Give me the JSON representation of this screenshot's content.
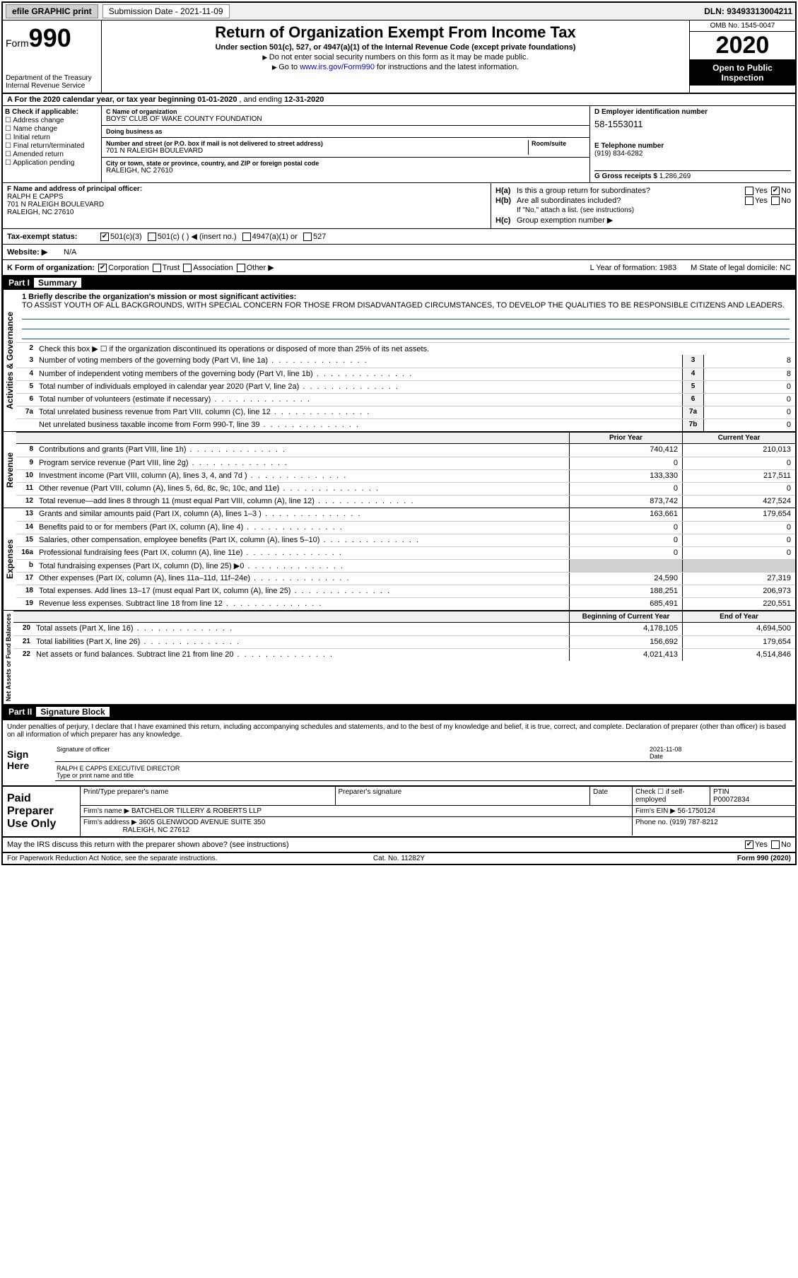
{
  "topbar": {
    "efile": "efile GRAPHIC print",
    "submission_label": "Submission Date - 2021-11-09",
    "dln": "DLN: 93493313004211"
  },
  "header": {
    "form_word": "Form",
    "form_num": "990",
    "dept": "Department of the Treasury\nInternal Revenue Service",
    "title": "Return of Organization Exempt From Income Tax",
    "sub1": "Under section 501(c), 527, or 4947(a)(1) of the Internal Revenue Code (except private foundations)",
    "sub2": "Do not enter social security numbers on this form as it may be made public.",
    "sub3_pre": "Go to ",
    "sub3_link": "www.irs.gov/Form990",
    "sub3_post": " for instructions and the latest information.",
    "omb": "OMB No. 1545-0047",
    "year": "2020",
    "open": "Open to Public Inspection"
  },
  "period": {
    "a": "A For the 2020 calendar year, or tax year beginning ",
    "begin": "01-01-2020",
    "mid": " , and ending ",
    "end": "12-31-2020"
  },
  "B": {
    "label": "B Check if applicable:",
    "opts": [
      "Address change",
      "Name change",
      "Initial return",
      "Final return/terminated",
      "Amended return",
      "Application pending"
    ]
  },
  "C": {
    "name_lbl": "C Name of organization",
    "name": "BOYS' CLUB OF WAKE COUNTY FOUNDATION",
    "dba_lbl": "Doing business as",
    "dba": "",
    "street_lbl": "Number and street (or P.O. box if mail is not delivered to street address)",
    "street": "701 N RALEIGH BOULEVARD",
    "room_lbl": "Room/suite",
    "room": "",
    "city_lbl": "City or town, state or province, country, and ZIP or foreign postal code",
    "city": "RALEIGH, NC  27610"
  },
  "D": {
    "ein_lbl": "D Employer identification number",
    "ein": "58-1553011",
    "phone_lbl": "E Telephone number",
    "phone": "(919) 834-6282",
    "gross_lbl": "G Gross receipts $ ",
    "gross": "1,286,269"
  },
  "F": {
    "lbl": "F  Name and address of principal officer:",
    "name": "RALPH E CAPPS",
    "addr1": "701 N RALEIGH BOULEVARD",
    "addr2": "RALEIGH, NC  27610"
  },
  "H": {
    "a": "Is this a group return for subordinates?",
    "b": "Are all subordinates included?",
    "bnote": "If \"No,\" attach a list. (see instructions)",
    "c": "Group exemption number ▶",
    "yes": "Yes",
    "no": "No"
  },
  "I": {
    "lbl": "Tax-exempt status:",
    "o1": "501(c)(3)",
    "o2": "501(c) (   ) ◀ (insert no.)",
    "o3": "4947(a)(1) or",
    "o4": "527"
  },
  "J": {
    "lbl": "Website: ▶",
    "val": "N/A"
  },
  "K": {
    "lbl": "K Form of organization:",
    "o1": "Corporation",
    "o2": "Trust",
    "o3": "Association",
    "o4": "Other ▶",
    "L": "L Year of formation: 1983",
    "M": "M State of legal domicile: NC"
  },
  "part1": {
    "hdr": "Part I",
    "title": "Summary"
  },
  "mission": {
    "lbl": "1  Briefly describe the organization's mission or most significant activities:",
    "text": "TO ASSIST YOUTH OF ALL BACKGROUNDS, WITH SPECIAL CONCERN FOR THOSE FROM DISADVANTAGED CIRCUMSTANCES, TO DEVELOP THE QUALITIES TO BE RESPONSIBLE CITIZENS AND LEADERS."
  },
  "activities": {
    "vlabel": "Activities & Governance",
    "l2": "Check this box ▶ ☐ if the organization discontinued its operations or disposed of more than 25% of its net assets.",
    "rows": [
      {
        "n": "3",
        "t": "Number of voting members of the governing body (Part VI, line 1a)",
        "b": "3",
        "v": "8"
      },
      {
        "n": "4",
        "t": "Number of independent voting members of the governing body (Part VI, line 1b)",
        "b": "4",
        "v": "8"
      },
      {
        "n": "5",
        "t": "Total number of individuals employed in calendar year 2020 (Part V, line 2a)",
        "b": "5",
        "v": "0"
      },
      {
        "n": "6",
        "t": "Total number of volunteers (estimate if necessary)",
        "b": "6",
        "v": "0"
      },
      {
        "n": "7a",
        "t": "Total unrelated business revenue from Part VIII, column (C), line 12",
        "b": "7a",
        "v": "0"
      },
      {
        "n": "",
        "t": "Net unrelated business taxable income from Form 990-T, line 39",
        "b": "7b",
        "v": "0"
      }
    ]
  },
  "revenue": {
    "vlabel": "Revenue",
    "hdr_prior": "Prior Year",
    "hdr_curr": "Current Year",
    "rows": [
      {
        "n": "8",
        "t": "Contributions and grants (Part VIII, line 1h)",
        "p": "740,412",
        "c": "210,013"
      },
      {
        "n": "9",
        "t": "Program service revenue (Part VIII, line 2g)",
        "p": "0",
        "c": "0"
      },
      {
        "n": "10",
        "t": "Investment income (Part VIII, column (A), lines 3, 4, and 7d )",
        "p": "133,330",
        "c": "217,511"
      },
      {
        "n": "11",
        "t": "Other revenue (Part VIII, column (A), lines 5, 6d, 8c, 9c, 10c, and 11e)",
        "p": "0",
        "c": "0"
      },
      {
        "n": "12",
        "t": "Total revenue—add lines 8 through 11 (must equal Part VIII, column (A), line 12)",
        "p": "873,742",
        "c": "427,524"
      }
    ]
  },
  "expenses": {
    "vlabel": "Expenses",
    "rows": [
      {
        "n": "13",
        "t": "Grants and similar amounts paid (Part IX, column (A), lines 1–3 )",
        "p": "163,661",
        "c": "179,654"
      },
      {
        "n": "14",
        "t": "Benefits paid to or for members (Part IX, column (A), line 4)",
        "p": "0",
        "c": "0"
      },
      {
        "n": "15",
        "t": "Salaries, other compensation, employee benefits (Part IX, column (A), lines 5–10)",
        "p": "0",
        "c": "0"
      },
      {
        "n": "16a",
        "t": "Professional fundraising fees (Part IX, column (A), line 11e)",
        "p": "0",
        "c": "0"
      },
      {
        "n": "b",
        "t": "Total fundraising expenses (Part IX, column (D), line 25) ▶0",
        "p": "",
        "c": "",
        "shade": true
      },
      {
        "n": "17",
        "t": "Other expenses (Part IX, column (A), lines 11a–11d, 11f–24e)",
        "p": "24,590",
        "c": "27,319"
      },
      {
        "n": "18",
        "t": "Total expenses. Add lines 13–17 (must equal Part IX, column (A), line 25)",
        "p": "188,251",
        "c": "206,973"
      },
      {
        "n": "19",
        "t": "Revenue less expenses. Subtract line 18 from line 12",
        "p": "685,491",
        "c": "220,551"
      }
    ]
  },
  "netassets": {
    "vlabel": "Net Assets or Fund Balances",
    "hdr_prior": "Beginning of Current Year",
    "hdr_curr": "End of Year",
    "rows": [
      {
        "n": "20",
        "t": "Total assets (Part X, line 16)",
        "p": "4,178,105",
        "c": "4,694,500"
      },
      {
        "n": "21",
        "t": "Total liabilities (Part X, line 26)",
        "p": "156,692",
        "c": "179,654"
      },
      {
        "n": "22",
        "t": "Net assets or fund balances. Subtract line 21 from line 20",
        "p": "4,021,413",
        "c": "4,514,846"
      }
    ]
  },
  "part2": {
    "hdr": "Part II",
    "title": "Signature Block"
  },
  "sig": {
    "decl": "Under penalties of perjury, I declare that I have examined this return, including accompanying schedules and statements, and to the best of my knowledge and belief, it is true, correct, and complete. Declaration of preparer (other than officer) is based on all information of which preparer has any knowledge.",
    "here": "Sign Here",
    "sig_lbl": "Signature of officer",
    "date_lbl": "Date",
    "date": "2021-11-08",
    "name": "RALPH E CAPPS  EXECUTIVE DIRECTOR",
    "name_lbl": "Type or print name and title"
  },
  "paid": {
    "lbl": "Paid Preparer Use Only",
    "h1": "Print/Type preparer's name",
    "h2": "Preparer's signature",
    "h3": "Date",
    "h4": "Check ☐ if self-employed",
    "h5_lbl": "PTIN",
    "h5": "P00072834",
    "firm_lbl": "Firm's name   ▶",
    "firm": "BATCHELOR TILLERY & ROBERTS LLP",
    "firm_ein_lbl": "Firm's EIN ▶",
    "firm_ein": "56-1750124",
    "addr_lbl": "Firm's address ▶",
    "addr1": "3605 GLENWOOD AVENUE SUITE 350",
    "addr2": "RALEIGH, NC  27612",
    "phone_lbl": "Phone no.",
    "phone": "(919) 787-8212"
  },
  "discuss": {
    "q": "May the IRS discuss this return with the preparer shown above? (see instructions)",
    "yes": "Yes",
    "no": "No"
  },
  "footer": {
    "l": "For Paperwork Reduction Act Notice, see the separate instructions.",
    "c": "Cat. No. 11282Y",
    "r": "Form 990 (2020)"
  }
}
